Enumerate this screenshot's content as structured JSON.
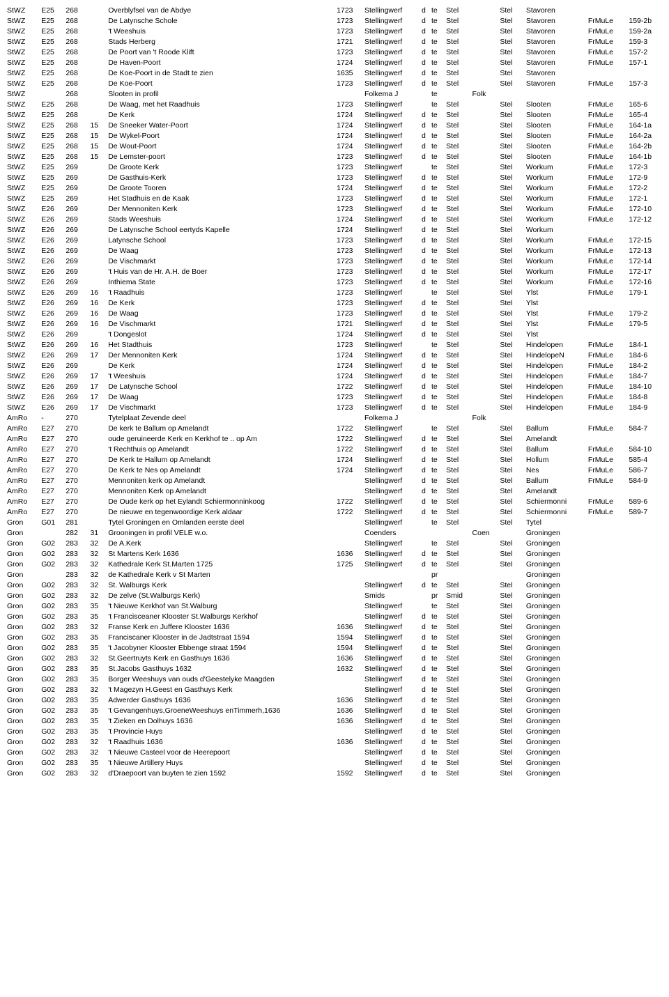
{
  "columns": [
    {
      "key": "c0"
    },
    {
      "key": "c1"
    },
    {
      "key": "c2"
    },
    {
      "key": "c3"
    },
    {
      "key": "c4"
    },
    {
      "key": "c5"
    },
    {
      "key": "c6"
    },
    {
      "key": "c7"
    },
    {
      "key": "c8"
    },
    {
      "key": "c9"
    },
    {
      "key": "c10"
    },
    {
      "key": "c11"
    },
    {
      "key": "c12"
    },
    {
      "key": "c13"
    },
    {
      "key": "c14"
    }
  ],
  "rows": [
    [
      "StWZ",
      "E25",
      "268",
      "",
      "Overblyfsel van de Abdye",
      "1723",
      "Stellingwerf",
      "d",
      "te",
      "Stel",
      "",
      "Stel",
      "Stavoren",
      "",
      ""
    ],
    [
      "StWZ",
      "E25",
      "268",
      "",
      "De Latynsche Schole",
      "1723",
      "Stellingwerf",
      "d",
      "te",
      "Stel",
      "",
      "Stel",
      "Stavoren",
      "FrMuLe",
      "159-2b"
    ],
    [
      "StWZ",
      "E25",
      "268",
      "",
      "'t Weeshuis",
      "1723",
      "Stellingwerf",
      "d",
      "te",
      "Stel",
      "",
      "Stel",
      "Stavoren",
      "FrMuLe",
      "159-2a"
    ],
    [
      "StWZ",
      "E25",
      "268",
      "",
      "Stads Herberg",
      "1721",
      "Stellingwerf",
      "d",
      "te",
      "Stel",
      "",
      "Stel",
      "Stavoren",
      "FrMuLe",
      "159-3"
    ],
    [
      "StWZ",
      "E25",
      "268",
      "",
      "De Poort van 't Roode Klift",
      "1723",
      "Stellingwerf",
      "d",
      "te",
      "Stel",
      "",
      "Stel",
      "Stavoren",
      "FrMuLe",
      "157-2"
    ],
    [
      "StWZ",
      "E25",
      "268",
      "",
      "De Haven-Poort",
      "1724",
      "Stellingwerf",
      "d",
      "te",
      "Stel",
      "",
      "Stel",
      "Stavoren",
      "FrMuLe",
      "157-1"
    ],
    [
      "StWZ",
      "E25",
      "268",
      "",
      "De Koe-Poort in de Stadt te zien",
      "1635",
      "Stellingwerf",
      "d",
      "te",
      "Stel",
      "",
      "Stel",
      "Stavoren",
      "",
      ""
    ],
    [
      "StWZ",
      "E25",
      "268",
      "",
      "De Koe-Poort",
      "1723",
      "Stellingwerf",
      "d",
      "te",
      "Stel",
      "",
      "Stel",
      "Stavoren",
      "FrMuLe",
      "157-3"
    ],
    [
      "StWZ",
      "",
      "268",
      "",
      "Slooten in profil",
      "",
      "Folkema J",
      "",
      "te",
      "",
      "Folk",
      "",
      "",
      "",
      ""
    ],
    [
      "StWZ",
      "E25",
      "268",
      "",
      "De Waag, met het Raadhuis",
      "1723",
      "Stellingwerf",
      "",
      "te",
      "Stel",
      "",
      "Stel",
      "Slooten",
      "FrMuLe",
      "165-6"
    ],
    [
      "StWZ",
      "E25",
      "268",
      "",
      "De Kerk",
      "1724",
      "Stellingwerf",
      "d",
      "te",
      "Stel",
      "",
      "Stel",
      "Slooten",
      "FrMuLe",
      "165-4"
    ],
    [
      "StWZ",
      "E25",
      "268",
      "15",
      "De Sneeker Water-Poort",
      "1724",
      "Stellingwerf",
      "d",
      "te",
      "Stel",
      "",
      "Stel",
      "Slooten",
      "FrMuLe",
      "164-1a"
    ],
    [
      "StWZ",
      "E25",
      "268",
      "15",
      "De Wykel-Poort",
      "1724",
      "Stellingwerf",
      "d",
      "te",
      "Stel",
      "",
      "Stel",
      "Slooten",
      "FrMuLe",
      "164-2a"
    ],
    [
      "StWZ",
      "E25",
      "268",
      "15",
      "De Wout-Poort",
      "1724",
      "Stellingwerf",
      "d",
      "te",
      "Stel",
      "",
      "Stel",
      "Slooten",
      "FrMuLe",
      "164-2b"
    ],
    [
      "StWZ",
      "E25",
      "268",
      "15",
      "De Lemster-poort",
      "1723",
      "Stellingwerf",
      "d",
      "te",
      "Stel",
      "",
      "Stel",
      "Slooten",
      "FrMuLe",
      "164-1b"
    ],
    [
      "StWZ",
      "E25",
      "269",
      "",
      "De Groote Kerk",
      "1723",
      "Stellingwerf",
      "",
      "te",
      "Stel",
      "",
      "Stel",
      "Workum",
      "FrMuLe",
      "172-3"
    ],
    [
      "StWZ",
      "E25",
      "269",
      "",
      "De Gasthuis-Kerk",
      "1723",
      "Stellingwerf",
      "d",
      "te",
      "Stel",
      "",
      "Stel",
      "Workum",
      "FrMuLe",
      "172-9"
    ],
    [
      "StWZ",
      "E25",
      "269",
      "",
      "De Groote Tooren",
      "1724",
      "Stellingwerf",
      "d",
      "te",
      "Stel",
      "",
      "Stel",
      "Workum",
      "FrMuLe",
      "172-2"
    ],
    [
      "StWZ",
      "E25",
      "269",
      "",
      "Het Stadhuis en de Kaak",
      "1723",
      "Stellingwerf",
      "d",
      "te",
      "Stel",
      "",
      "Stel",
      "Workum",
      "FrMuLe",
      "172-1"
    ],
    [
      "StWZ",
      "E26",
      "269",
      "",
      "Der Mennoniten Kerk",
      "1723",
      "Stellingwerf",
      "d",
      "te",
      "Stel",
      "",
      "Stel",
      "Workum",
      "FrMuLe",
      "172-10"
    ],
    [
      "StWZ",
      "E26",
      "269",
      "",
      "Stads Weeshuis",
      "1724",
      "Stellingwerf",
      "d",
      "te",
      "Stel",
      "",
      "Stel",
      "Workum",
      "FrMuLe",
      "172-12"
    ],
    [
      "StWZ",
      "E26",
      "269",
      "",
      "De Latynsche School eertyds Kapelle",
      "1724",
      "Stellingwerf",
      "d",
      "te",
      "Stel",
      "",
      "Stel",
      "Workum",
      "",
      ""
    ],
    [
      "StWZ",
      "E26",
      "269",
      "",
      "Latynsche School",
      "1723",
      "Stellingwerf",
      "d",
      "te",
      "Stel",
      "",
      "Stel",
      "Workum",
      "FrMuLe",
      "172-15"
    ],
    [
      "StWZ",
      "E26",
      "269",
      "",
      "De Waag",
      "1723",
      "Stellingwerf",
      "d",
      "te",
      "Stel",
      "",
      "Stel",
      "Workum",
      "FrMuLe",
      "172-13"
    ],
    [
      "StWZ",
      "E26",
      "269",
      "",
      "De Vischmarkt",
      "1723",
      "Stellingwerf",
      "d",
      "te",
      "Stel",
      "",
      "Stel",
      "Workum",
      "FrMuLe",
      "172-14"
    ],
    [
      "StWZ",
      "E26",
      "269",
      "",
      "'t Huis van de Hr. A.H. de Boer",
      "1723",
      "Stellingwerf",
      "d",
      "te",
      "Stel",
      "",
      "Stel",
      "Workum",
      "FrMuLe",
      "172-17"
    ],
    [
      "StWZ",
      "E26",
      "269",
      "",
      "Inthiema State",
      "1723",
      "Stellingwerf",
      "d",
      "te",
      "Stel",
      "",
      "Stel",
      "Workum",
      "FrMuLe",
      "172-16"
    ],
    [
      "StWZ",
      "E26",
      "269",
      "16",
      "'t Raadhuis",
      "1723",
      "Stellingwerf",
      "",
      "te",
      "Stel",
      "",
      "Stel",
      "Ylst",
      "FrMuLe",
      "179-1"
    ],
    [
      "StWZ",
      "E26",
      "269",
      "16",
      "De Kerk",
      "1723",
      "Stellingwerf",
      "d",
      "te",
      "Stel",
      "",
      "Stel",
      "Ylst",
      "",
      ""
    ],
    [
      "StWZ",
      "E26",
      "269",
      "16",
      "De Waag",
      "1723",
      "Stellingwerf",
      "d",
      "te",
      "Stel",
      "",
      "Stel",
      "Ylst",
      "FrMuLe",
      "179-2"
    ],
    [
      "StWZ",
      "E26",
      "269",
      "16",
      "De Vischmarkt",
      "1721",
      "Stellingwerf",
      "d",
      "te",
      "Stel",
      "",
      "Stel",
      "Ylst",
      "FrMuLe",
      "179-5"
    ],
    [
      "StWZ",
      "E26",
      "269",
      "",
      "'t Dongeslot",
      "1724",
      "Stellingwerf",
      "d",
      "te",
      "Stel",
      "",
      "Stel",
      "Ylst",
      "",
      ""
    ],
    [
      "StWZ",
      "E26",
      "269",
      "16",
      "Het Stadthuis",
      "1723",
      "Stellingwerf",
      "",
      "te",
      "Stel",
      "",
      "Stel",
      "Hindelopen",
      "FrMuLe",
      "184-1"
    ],
    [
      "StWZ",
      "E26",
      "269",
      "17",
      "Der Mennoniten Kerk",
      "1724",
      "Stellingwerf",
      "d",
      "te",
      "Stel",
      "",
      "Stel",
      "HindelopeN",
      "FrMuLe",
      "184-6"
    ],
    [
      "StWZ",
      "E26",
      "269",
      "",
      "De Kerk",
      "1724",
      "Stellingwerf",
      "d",
      "te",
      "Stel",
      "",
      "Stel",
      "Hindelopen",
      "FrMuLe",
      "184-2"
    ],
    [
      "StWZ",
      "E26",
      "269",
      "17",
      "'t Weeshuis",
      "1724",
      "Stellingwerf",
      "d",
      "te",
      "Stel",
      "",
      "Stel",
      "Hindelopen",
      "FrMuLe",
      "184-7"
    ],
    [
      "StWZ",
      "E26",
      "269",
      "17",
      "De Latynsche School",
      "1722",
      "Stellingwerf",
      "d",
      "te",
      "Stel",
      "",
      "Stel",
      "Hindelopen",
      "FrMuLe",
      "184-10"
    ],
    [
      "StWZ",
      "E26",
      "269",
      "17",
      "De Waag",
      "1723",
      "Stellingwerf",
      "d",
      "te",
      "Stel",
      "",
      "Stel",
      "Hindelopen",
      "FrMuLe",
      "184-8"
    ],
    [
      "StWZ",
      "E26",
      "269",
      "17",
      "De Vischmarkt",
      "1723",
      "Stellingwerf",
      "d",
      "te",
      "Stel",
      "",
      "Stel",
      "Hindelopen",
      "FrMuLe",
      "184-9"
    ],
    [
      "AmRo",
      "-",
      "270",
      "",
      "Tytelplaat  Zevende deel",
      "",
      "Folkema J",
      "",
      "",
      "",
      "Folk",
      "",
      "",
      "",
      ""
    ],
    [
      "AmRo",
      "E27",
      "270",
      "",
      "De kerk te Ballum op Amelandt",
      "1722",
      "Stellingwerf",
      "",
      "te",
      "Stel",
      "",
      "Stel",
      "Ballum",
      "FrMuLe",
      "584-7"
    ],
    [
      "AmRo",
      "E27",
      "270",
      "",
      "oude geruineerde Kerk en Kerkhof te .. op Am",
      "1722",
      "Stellingwerf",
      "d",
      "te",
      "Stel",
      "",
      "Stel",
      "Amelandt",
      "",
      ""
    ],
    [
      "AmRo",
      "E27",
      "270",
      "",
      "'t Rechthuis op Amelandt",
      "1722",
      "Stellingwerf",
      "d",
      "te",
      "Stel",
      "",
      "Stel",
      "Ballum",
      "FrMuLe",
      "584-10"
    ],
    [
      "AmRo",
      "E27",
      "270",
      "",
      "De Kerk te Hallum op Amelandt",
      "1724",
      "Stellingwerf",
      "d",
      "te",
      "Stel",
      "",
      "Stel",
      "Hollum",
      "FrMuLe",
      "585-4"
    ],
    [
      "AmRo",
      "E27",
      "270",
      "",
      "De Kerk te Nes op Amelandt",
      "1724",
      "Stellingwerf",
      "d",
      "te",
      "Stel",
      "",
      "Stel",
      "Nes",
      "FrMuLe",
      "586-7"
    ],
    [
      "AmRo",
      "E27",
      "270",
      "",
      "Mennoniten kerk op Amelandt",
      "",
      "Stellingwerf",
      "d",
      "te",
      "Stel",
      "",
      "Stel",
      "Ballum",
      "FrMuLe",
      "584-9"
    ],
    [
      "AmRo",
      "E27",
      "270",
      "",
      "Mennoniten Kerk op Amelandt",
      "",
      "Stellingwerf",
      "d",
      "te",
      "Stel",
      "",
      "Stel",
      "Amelandt",
      "",
      ""
    ],
    [
      "AmRo",
      "E27",
      "270",
      "",
      "De Oude kerk op het Eylandt Schiermonninkoog",
      "1722",
      "Stellingwerf",
      "d",
      "te",
      "Stel",
      "",
      "Stel",
      "Schiermonni",
      "FrMuLe",
      "589-6"
    ],
    [
      "AmRo",
      "E27",
      "270",
      "",
      "De nieuwe en tegenwoordige Kerk aldaar",
      "1722",
      "Stellingwerf",
      "d",
      "te",
      "Stel",
      "",
      "Stel",
      "Schiermonni",
      "FrMuLe",
      "589-7"
    ],
    [
      "Gron",
      "G01",
      "281",
      "",
      "Tytel Groningen en Omlanden eerste deel",
      "",
      "Stellingwerf",
      "",
      "te",
      "Stel",
      "",
      "Stel",
      "Tytel",
      "",
      ""
    ],
    [
      "Gron",
      "",
      "282",
      "31",
      "Grooningen in profil   VELE  w.o.",
      "",
      "Coenders",
      "",
      "",
      "",
      "Coen",
      "",
      "Groningen",
      "",
      ""
    ],
    [
      "Gron",
      "G02",
      "283",
      "32",
      "De A.Kerk",
      "",
      "Stellingwerf",
      "",
      "te",
      "Stel",
      "",
      "Stel",
      "Groningen",
      "",
      ""
    ],
    [
      "Gron",
      "G02",
      "283",
      "32",
      "St Martens Kerk 1636",
      "1636",
      "Stellingwerf",
      "d",
      "te",
      "Stel",
      "",
      "Stel",
      "Groningen",
      "",
      ""
    ],
    [
      "Gron",
      "G02",
      "283",
      "32",
      "Kathedrale Kerk St.Marten 1725",
      "1725",
      "Stellingwerf",
      "d",
      "te",
      "Stel",
      "",
      "Stel",
      "Groningen",
      "",
      ""
    ],
    [
      "Gron",
      "",
      "283",
      "32",
      "de Kathedrale Kerk v St Marten",
      "",
      "",
      "",
      "pr",
      "",
      "",
      "",
      "Groningen",
      "",
      ""
    ],
    [
      "Gron",
      "G02",
      "283",
      "32",
      "St. Walburgs Kerk",
      "",
      "Stellingwerf",
      "d",
      "te",
      "Stel",
      "",
      "Stel",
      "Groningen",
      "",
      ""
    ],
    [
      "Gron",
      "G02",
      "283",
      "32",
      "De zelve (St.Walburgs Kerk)",
      "",
      "Smids",
      "",
      "pr",
      "Smid",
      "",
      "Stel",
      "Groningen",
      "",
      ""
    ],
    [
      "Gron",
      "G02",
      "283",
      "35",
      "'t Nieuwe Kerkhof van St.Walburg",
      "",
      "Stellingwerf",
      "",
      "te",
      "Stel",
      "",
      "Stel",
      "Groningen",
      "",
      ""
    ],
    [
      "Gron",
      "G02",
      "283",
      "35",
      "'t Francisceaner Klooster St.Walburgs Kerkhof",
      "",
      "Stellingwerf",
      "d",
      "te",
      "Stel",
      "",
      "Stel",
      "Groningen",
      "",
      ""
    ],
    [
      "Gron",
      "G02",
      "283",
      "32",
      "Franse Kerk en Juffere Klooster 1636",
      "1636",
      "Stellingwerf",
      "d",
      "te",
      "Stel",
      "",
      "Stel",
      "Groningen",
      "",
      ""
    ],
    [
      "Gron",
      "G02",
      "283",
      "35",
      "Franciscaner Klooster in de Jadtstraat 1594",
      "1594",
      "Stellingwerf",
      "d",
      "te",
      "Stel",
      "",
      "Stel",
      "Groningen",
      "",
      ""
    ],
    [
      "Gron",
      "G02",
      "283",
      "35",
      "'t Jacobyner Klooster Ebbenge straat 1594",
      "1594",
      "Stellingwerf",
      "d",
      "te",
      "Stel",
      "",
      "Stel",
      "Groningen",
      "",
      ""
    ],
    [
      "Gron",
      "G02",
      "283",
      "32",
      "St.Geertruyts Kerk en Gasthuys 1636",
      "1636",
      "Stellingwerf",
      "d",
      "te",
      "Stel",
      "",
      "Stel",
      "Groningen",
      "",
      ""
    ],
    [
      "Gron",
      "G02",
      "283",
      "35",
      "St.Jacobs Gasthuys 1632",
      "1632",
      "Stellingwerf",
      "d",
      "te",
      "Stel",
      "",
      "Stel",
      "Groningen",
      "",
      ""
    ],
    [
      "Gron",
      "G02",
      "283",
      "35",
      "Borger Weeshuys van ouds d'Geestelyke Maagden",
      "",
      "Stellingwerf",
      "d",
      "te",
      "Stel",
      "",
      "Stel",
      "Groningen",
      "",
      ""
    ],
    [
      "Gron",
      "G02",
      "283",
      "32",
      "'t Magezyn H.Geest en Gasthuys Kerk",
      "",
      "Stellingwerf",
      "d",
      "te",
      "Stel",
      "",
      "Stel",
      "Groningen",
      "",
      ""
    ],
    [
      "Gron",
      "G02",
      "283",
      "35",
      "Adwerder Gasthuys 1636",
      "1636",
      "Stellingwerf",
      "d",
      "te",
      "Stel",
      "",
      "Stel",
      "Groningen",
      "",
      ""
    ],
    [
      "Gron",
      "G02",
      "283",
      "35",
      "'t Gevangenhuys,GroeneWeeshuys enTimmerh,1636",
      "1636",
      "Stellingwerf",
      "d",
      "te",
      "Stel",
      "",
      "Stel",
      "Groningen",
      "",
      ""
    ],
    [
      "Gron",
      "G02",
      "283",
      "35",
      "'t Zieken en Dolhuys 1636",
      "1636",
      "Stellingwerf",
      "d",
      "te",
      "Stel",
      "",
      "Stel",
      "Groningen",
      "",
      ""
    ],
    [
      "Gron",
      "G02",
      "283",
      "35",
      "'t Provincie Huys",
      "",
      "Stellingwerf",
      "d",
      "te",
      "Stel",
      "",
      "Stel",
      "Groningen",
      "",
      ""
    ],
    [
      "Gron",
      "G02",
      "283",
      "32",
      "'t Raadhuis 1636",
      "1636",
      "Stellingwerf",
      "d",
      "te",
      "Stel",
      "",
      "Stel",
      "Groningen",
      "",
      ""
    ],
    [
      "Gron",
      "G02",
      "283",
      "32",
      "'t Nieuwe Casteel voor de Heerepoort",
      "",
      "Stellingwerf",
      "d",
      "te",
      "Stel",
      "",
      "Stel",
      "Groningen",
      "",
      ""
    ],
    [
      "Gron",
      "G02",
      "283",
      "35",
      "'t Nieuwe Artillery Huys",
      "",
      "Stellingwerf",
      "d",
      "te",
      "Stel",
      "",
      "Stel",
      "Groningen",
      "",
      ""
    ],
    [
      "Gron",
      "G02",
      "283",
      "32",
      "d'Draepoort van buyten te zien 1592",
      "1592",
      "Stellingwerf",
      "d",
      "te",
      "Stel",
      "",
      "Stel",
      "Groningen",
      "",
      ""
    ]
  ]
}
